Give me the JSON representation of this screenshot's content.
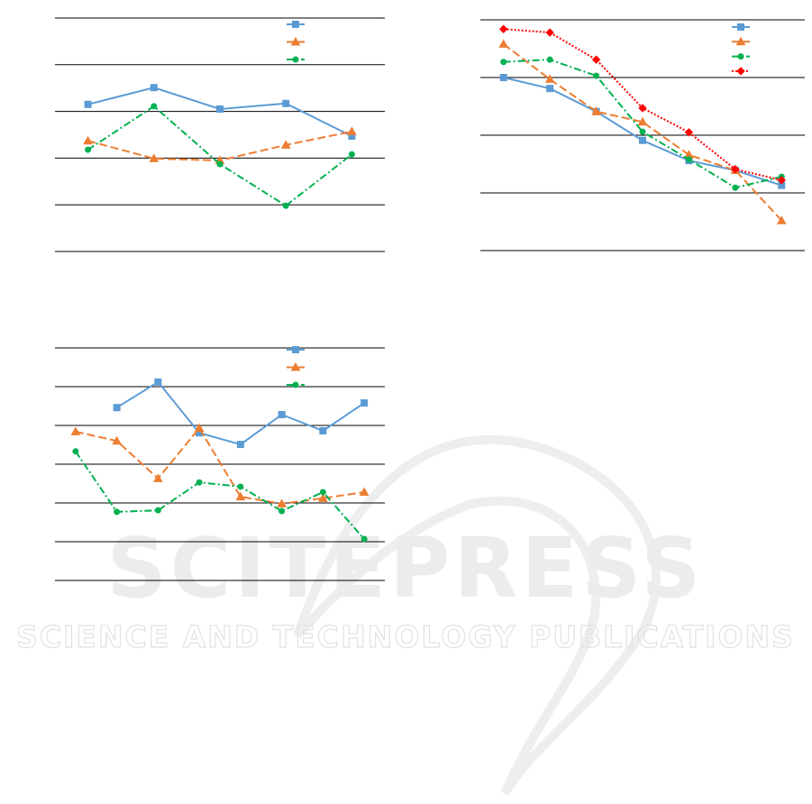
{
  "chart_data": [
    {
      "type": "line",
      "categories": [
        null,
        null,
        null,
        null,
        null
      ],
      "ylim": [
        0,
        5
      ],
      "yticks": [
        0,
        1,
        2,
        3,
        4,
        5
      ],
      "grid": true,
      "legend": "upper right",
      "series": [
        {
          "color": "#5b9bd5",
          "marker": "square",
          "line_style": "solid",
          "values": [
            3.15,
            3.51,
            3.05,
            3.17,
            2.47
          ]
        },
        {
          "color": "#ed7d31",
          "marker": "triangle",
          "line_style": "dashed",
          "values": [
            2.37,
            1.99,
            1.95,
            2.28,
            2.57
          ]
        },
        {
          "color": "#00b050",
          "marker": "circle",
          "line_style": "dashdot",
          "values": [
            2.18,
            3.11,
            1.87,
            0.98,
            2.08
          ]
        }
      ]
    },
    {
      "type": "line",
      "categories": [
        null,
        null,
        null,
        null,
        null,
        null,
        null
      ],
      "ylim": [
        0,
        4
      ],
      "yticks": [
        0,
        1,
        2,
        3,
        4
      ],
      "grid": true,
      "legend": "upper right",
      "series": [
        {
          "color": "#5b9bd5",
          "marker": "square",
          "line_style": "solid",
          "values": [
            3.0,
            2.81,
            2.41,
            1.91,
            1.56,
            1.39,
            1.13
          ]
        },
        {
          "color": "#ed7d31",
          "marker": "triangle",
          "line_style": "dashed",
          "values": [
            3.58,
            2.97,
            2.41,
            2.23,
            1.66,
            1.39,
            0.52
          ]
        },
        {
          "color": "#00b050",
          "marker": "circle",
          "line_style": "dashdot",
          "values": [
            3.27,
            3.31,
            3.03,
            2.06,
            1.58,
            1.09,
            1.28
          ]
        },
        {
          "color": "#ff0000",
          "marker": "diamond",
          "line_style": "dotted",
          "values": [
            3.84,
            3.78,
            3.31,
            2.47,
            2.05,
            1.41,
            1.22
          ]
        }
      ]
    },
    {
      "type": "line",
      "categories": [
        null,
        null,
        null,
        null,
        null,
        null,
        null,
        null
      ],
      "ylim": [
        0,
        6
      ],
      "yticks": [
        0,
        1,
        2,
        3,
        4,
        5,
        6
      ],
      "grid": true,
      "legend": "upper right",
      "series": [
        {
          "color": "#5b9bd5",
          "marker": "square",
          "line_style": "solid",
          "values": [
            null,
            4.46,
            5.12,
            3.81,
            3.51,
            4.28,
            3.86,
            4.58
          ]
        },
        {
          "color": "#ed7d31",
          "marker": "triangle",
          "line_style": "dashed",
          "values": [
            3.84,
            3.6,
            2.63,
            3.93,
            2.16,
            1.98,
            2.12,
            2.28
          ]
        },
        {
          "color": "#00b050",
          "marker": "circle",
          "line_style": "dashdot",
          "values": [
            3.33,
            1.77,
            1.81,
            2.53,
            2.42,
            1.79,
            2.28,
            1.07
          ]
        }
      ]
    }
  ],
  "watermark": {
    "title": "SCITEPRESS",
    "subtitle": "SCIENCE AND TECHNOLOGY PUBLICATIONS"
  }
}
